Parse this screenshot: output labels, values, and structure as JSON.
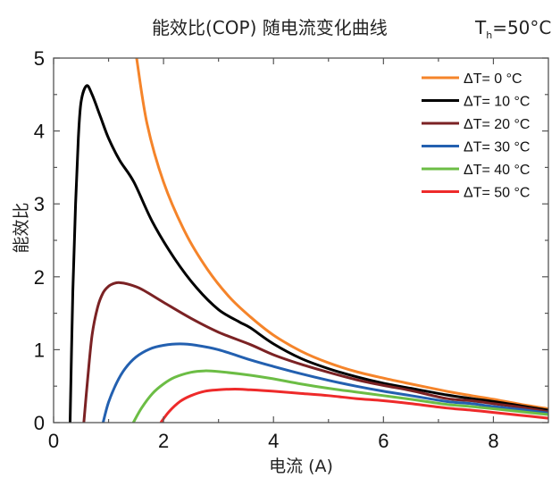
{
  "chart_data": {
    "type": "line",
    "title": "能效比(COP) 随电流变化曲线",
    "annotation": {
      "label": "T",
      "subscript": "h",
      "value": "=50°C"
    },
    "xlabel": "电流 (A)",
    "ylabel": "能效比",
    "xlim": [
      0,
      9
    ],
    "ylim": [
      0,
      5
    ],
    "xticks": [
      0,
      2,
      4,
      6,
      8
    ],
    "xticks_minor": [
      1,
      3,
      5,
      7
    ],
    "yticks": [
      0,
      1,
      2,
      3,
      4,
      5
    ],
    "yticks_minor": [
      0.5,
      1.5,
      2.5,
      3.5,
      4.5
    ],
    "grid": false,
    "legend_position": "top-right",
    "series": [
      {
        "name": "ΔT= 0 °C",
        "color": "#f5842a",
        "x": [
          1.51,
          1.7,
          2.0,
          2.4,
          2.8,
          3.2,
          3.58,
          4.0,
          4.5,
          5.0,
          5.5,
          6.0,
          6.5,
          7.15,
          7.6,
          8.0,
          8.5,
          9.0
        ],
        "y": [
          5.0,
          4.1,
          3.3,
          2.6,
          2.1,
          1.72,
          1.45,
          1.2,
          0.98,
          0.82,
          0.7,
          0.61,
          0.53,
          0.43,
          0.37,
          0.32,
          0.25,
          0.19
        ]
      },
      {
        "name": "ΔT= 10 °C",
        "color": "#000000",
        "x": [
          0.3,
          0.35,
          0.4,
          0.45,
          0.5,
          0.6,
          0.7,
          0.85,
          1.0,
          1.2,
          1.46,
          1.8,
          2.2,
          2.6,
          3.0,
          3.38,
          3.58,
          4.0,
          4.5,
          5.0,
          5.5,
          6.0,
          6.5,
          7.15,
          7.6,
          8.0,
          8.5,
          9.0
        ],
        "y": [
          0.0,
          1.8,
          3.0,
          3.9,
          4.4,
          4.62,
          4.5,
          4.2,
          3.9,
          3.6,
          3.3,
          2.75,
          2.25,
          1.85,
          1.55,
          1.38,
          1.3,
          1.08,
          0.88,
          0.74,
          0.63,
          0.54,
          0.47,
          0.38,
          0.33,
          0.29,
          0.23,
          0.17
        ]
      },
      {
        "name": "ΔT= 20 °C",
        "color": "#7b2224",
        "x": [
          0.55,
          0.62,
          0.7,
          0.8,
          0.9,
          1.0,
          1.1,
          1.2,
          1.35,
          1.6,
          2.0,
          2.5,
          3.0,
          3.58,
          4.0,
          4.5,
          5.0,
          5.5,
          6.0,
          6.5,
          7.15,
          7.6,
          8.0,
          8.5,
          9.0
        ],
        "y": [
          0.0,
          0.6,
          1.2,
          1.58,
          1.78,
          1.87,
          1.91,
          1.92,
          1.9,
          1.83,
          1.65,
          1.43,
          1.24,
          1.07,
          0.93,
          0.8,
          0.69,
          0.59,
          0.51,
          0.44,
          0.33,
          0.3,
          0.26,
          0.21,
          0.15
        ]
      },
      {
        "name": "ΔT= 30 °C",
        "color": "#2360b0",
        "x": [
          0.9,
          1.0,
          1.15,
          1.3,
          1.5,
          1.75,
          2.0,
          2.3,
          2.6,
          3.0,
          3.58,
          4.0,
          4.5,
          5.0,
          5.5,
          6.0,
          6.5,
          7.15,
          7.6,
          8.0,
          8.5,
          9.0
        ],
        "y": [
          0.0,
          0.28,
          0.55,
          0.74,
          0.9,
          1.01,
          1.06,
          1.08,
          1.06,
          1.0,
          0.86,
          0.77,
          0.67,
          0.58,
          0.5,
          0.43,
          0.37,
          0.29,
          0.26,
          0.22,
          0.18,
          0.13
        ]
      },
      {
        "name": "ΔT= 40 °C",
        "color": "#6cbd45",
        "x": [
          1.45,
          1.6,
          1.8,
          2.0,
          2.2,
          2.5,
          2.75,
          3.0,
          3.58,
          4.0,
          4.5,
          5.0,
          5.5,
          6.0,
          6.5,
          7.15,
          7.6,
          8.0,
          8.5,
          9.0
        ],
        "y": [
          0.0,
          0.2,
          0.4,
          0.53,
          0.62,
          0.69,
          0.71,
          0.7,
          0.65,
          0.6,
          0.53,
          0.47,
          0.42,
          0.37,
          0.32,
          0.25,
          0.22,
          0.19,
          0.15,
          0.11
        ]
      },
      {
        "name": "ΔT= 50 °C",
        "color": "#ee2a2a",
        "x": [
          1.95,
          2.1,
          2.3,
          2.5,
          2.75,
          3.0,
          3.3,
          3.58,
          4.0,
          4.5,
          5.0,
          5.5,
          6.0,
          6.5,
          7.15,
          7.6,
          8.0,
          8.5,
          9.0
        ],
        "y": [
          0.0,
          0.15,
          0.29,
          0.37,
          0.43,
          0.45,
          0.46,
          0.45,
          0.43,
          0.4,
          0.37,
          0.33,
          0.3,
          0.26,
          0.2,
          0.17,
          0.14,
          0.1,
          0.06
        ]
      }
    ]
  }
}
